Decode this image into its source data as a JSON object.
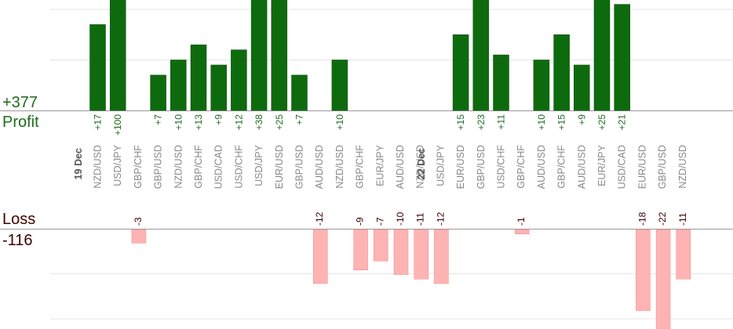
{
  "summary": {
    "profit_total": "+377",
    "profit_label": "Profit",
    "loss_label": "Loss",
    "loss_total": "-116"
  },
  "colors": {
    "profit_bar": "#0d6b0d",
    "profit_bar_edge": "#0a4d0a",
    "profit_text": "#1e6b1e",
    "loss_bar": "#ffb3b3",
    "loss_bar_edge": "#ee8888",
    "loss_text": "#3d0000",
    "pair_text": "#888888",
    "date_text": "#555555",
    "grid": "#e4e4e4",
    "axis": "#999999"
  },
  "chart_data": {
    "type": "bar",
    "title": "",
    "xlabel": "",
    "ylabel": "",
    "grid": true,
    "date_labels": [
      {
        "index": 0,
        "text": "19 Dec"
      },
      {
        "index": 17,
        "text": "22 Dec"
      }
    ],
    "categories": [
      "NZD/USD",
      "USD/JPY",
      "GBP/CHF",
      "GBP/USD",
      "NZD/USD",
      "GBP/CHF",
      "USD/CAD",
      "USD/CHF",
      "USD/JPY",
      "EUR/USD",
      "GBP/USD",
      "AUD/USD",
      "NZD/USD",
      "GBP/CHF",
      "EUR/JPY",
      "AUD/USD",
      "NZD/USD",
      "USD/JPY",
      "EUR/USD",
      "GBP/USD",
      "USD/CHF",
      "GBP/CHF",
      "AUD/USD",
      "GBP/CHF",
      "AUD/USD",
      "EUR/JPY",
      "USD/CAD",
      "EUR/USD",
      "GBP/USD",
      "NZD/USD"
    ],
    "values": [
      17,
      100,
      -3,
      7,
      10,
      13,
      9,
      12,
      38,
      25,
      7,
      -12,
      10,
      -9,
      -7,
      -10,
      -11,
      -12,
      15,
      23,
      11,
      -1,
      10,
      15,
      9,
      25,
      21,
      -18,
      -22,
      -11
    ],
    "value_labels": [
      "+17",
      "+100",
      "-3",
      "+7",
      "+10",
      "+13",
      "+9",
      "+12",
      "+38",
      "+25",
      "+7",
      "-12",
      "+10",
      "-9",
      "-7",
      "-10",
      "-11",
      "-12",
      "+15",
      "+23",
      "+11",
      "-1",
      "+10",
      "+15",
      "+9",
      "+25",
      "+21",
      "-18",
      "-22",
      "-11"
    ],
    "profit_axis_tick_step": 10,
    "loss_axis_tick_step": 10
  }
}
